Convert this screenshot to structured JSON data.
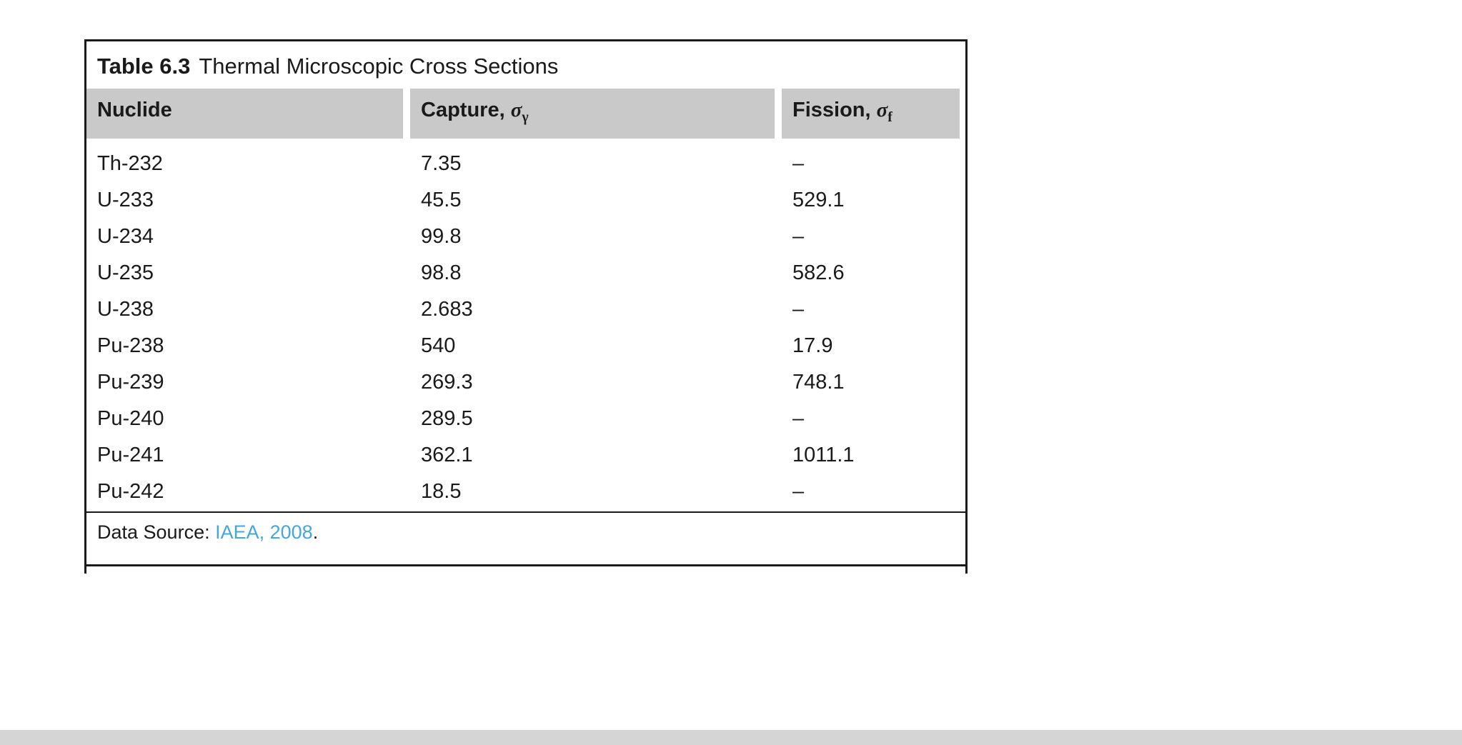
{
  "table": {
    "label": "Table 6.3",
    "title": "Thermal Microscopic Cross Sections",
    "columns": [
      {
        "label": "Nuclide",
        "symbol": "",
        "subscript": ""
      },
      {
        "label": "Capture, ",
        "symbol": "σ",
        "subscript": "γ"
      },
      {
        "label": "Fission, ",
        "symbol": "σ",
        "subscript": "f"
      }
    ],
    "rows": [
      [
        "Th-232",
        "7.35",
        "–"
      ],
      [
        "U-233",
        "45.5",
        "529.1"
      ],
      [
        "U-234",
        "99.8",
        "–"
      ],
      [
        "U-235",
        "98.8",
        "582.6"
      ],
      [
        "U-238",
        "2.683",
        "–"
      ],
      [
        "Pu-238",
        "540",
        "17.9"
      ],
      [
        "Pu-239",
        "269.3",
        "748.1"
      ],
      [
        "Pu-240",
        "289.5",
        "–"
      ],
      [
        "Pu-241",
        "362.1",
        "1011.1"
      ],
      [
        "Pu-242",
        "18.5",
        "–"
      ]
    ],
    "footer": {
      "prefix": "Data Source: ",
      "link": "IAEA, 2008",
      "suffix": "."
    }
  },
  "colors": {
    "header_bg": "#c9c9c9",
    "link": "#45a7d8",
    "border": "#1a1a1a"
  },
  "chart_data": {
    "type": "table",
    "title": "Table 6.3 Thermal Microscopic Cross Sections",
    "columns": [
      "Nuclide",
      "Capture, σγ",
      "Fission, σf"
    ],
    "rows": [
      [
        "Th-232",
        "7.35",
        "–"
      ],
      [
        "U-233",
        "45.5",
        "529.1"
      ],
      [
        "U-234",
        "99.8",
        "–"
      ],
      [
        "U-235",
        "98.8",
        "582.6"
      ],
      [
        "U-238",
        "2.683",
        "–"
      ],
      [
        "Pu-238",
        "540",
        "17.9"
      ],
      [
        "Pu-239",
        "269.3",
        "748.1"
      ],
      [
        "Pu-240",
        "289.5",
        "–"
      ],
      [
        "Pu-241",
        "362.1",
        "1011.1"
      ],
      [
        "Pu-242",
        "18.5",
        "–"
      ]
    ],
    "footnote": "Data Source: IAEA, 2008."
  }
}
